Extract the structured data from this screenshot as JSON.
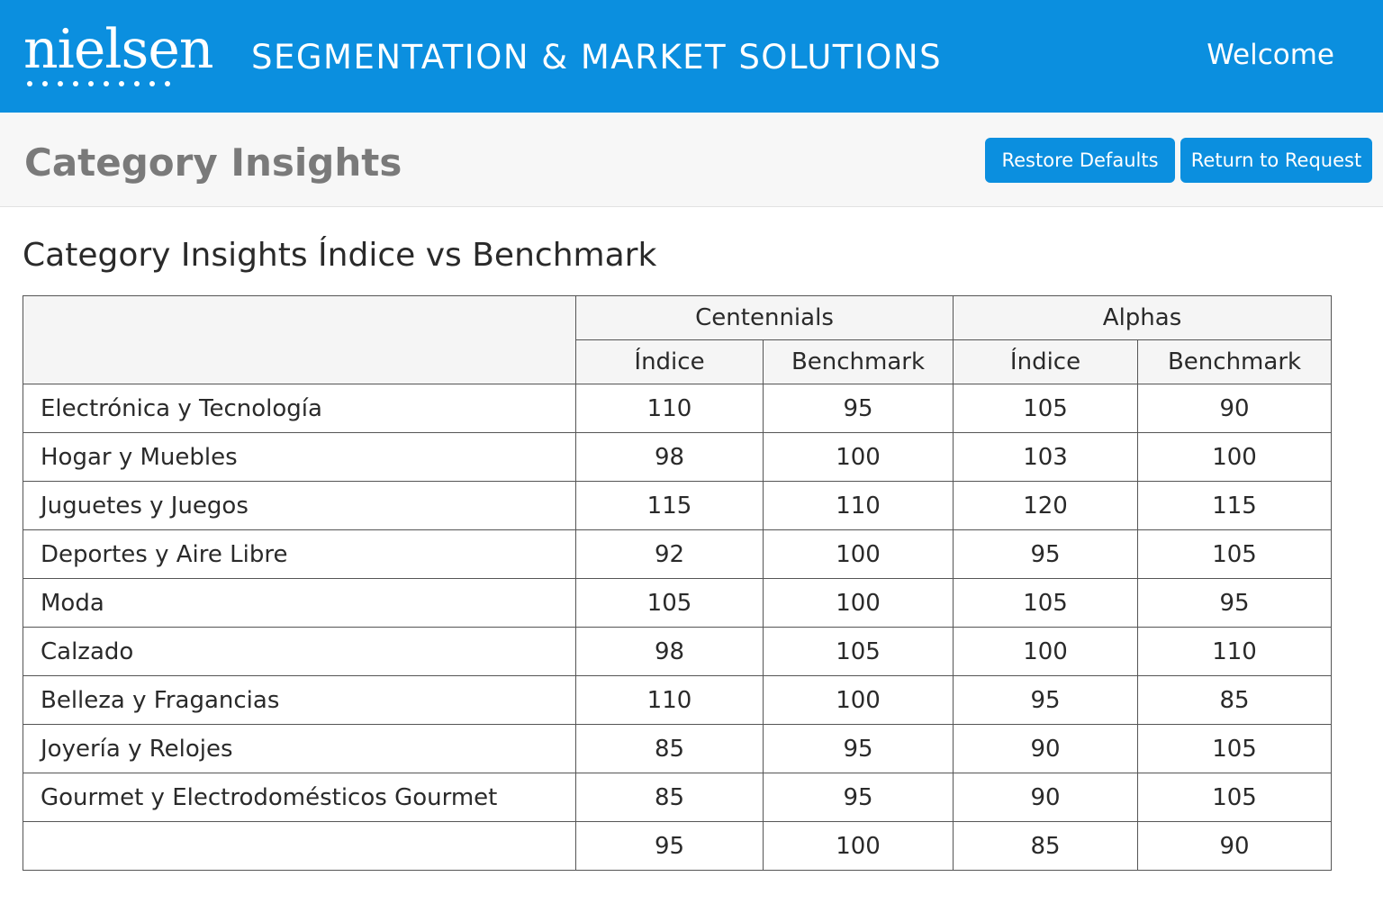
{
  "header": {
    "logo_text": "nielsen",
    "app_title": "SEGMENTATION & MARKET SOLUTIONS",
    "welcome": "Welcome"
  },
  "subheader": {
    "page_title": "Category Insights",
    "restore_label": "Restore Defaults",
    "return_label": "Return to Request"
  },
  "section_title": "Category Insights Índice vs Benchmark",
  "table": {
    "groups": [
      "Centennials",
      "Alphas"
    ],
    "subheaders": [
      "Índice",
      "Benchmark",
      "Índice",
      "Benchmark"
    ],
    "rows": [
      {
        "category": "Electrónica y Tecnología",
        "values": [
          "110",
          "95",
          "105",
          "90"
        ]
      },
      {
        "category": "Hogar y Muebles",
        "values": [
          "98",
          "100",
          "103",
          "100"
        ]
      },
      {
        "category": "Juguetes y Juegos",
        "values": [
          "115",
          "110",
          "120",
          "115"
        ]
      },
      {
        "category": "Deportes y Aire Libre",
        "values": [
          "92",
          "100",
          "95",
          "105"
        ]
      },
      {
        "category": "Moda",
        "values": [
          "105",
          "100",
          "105",
          "95"
        ]
      },
      {
        "category": "Calzado",
        "values": [
          "98",
          "105",
          "100",
          "110"
        ]
      },
      {
        "category": "Belleza y Fragancias",
        "values": [
          "110",
          "100",
          "95",
          "85"
        ]
      },
      {
        "category": "Joyería y Relojes",
        "values": [
          "85",
          "95",
          "90",
          "105"
        ]
      },
      {
        "category": "Gourmet y Electrodomésticos Gourmet",
        "values": [
          "85",
          "95",
          "90",
          "105"
        ]
      },
      {
        "category": "",
        "values": [
          "95",
          "100",
          "85",
          "90"
        ]
      }
    ]
  },
  "colors": {
    "brand_blue": "#0b8fdf",
    "subheader_bg": "#f7f7f7",
    "title_gray": "#7a7a7a"
  }
}
